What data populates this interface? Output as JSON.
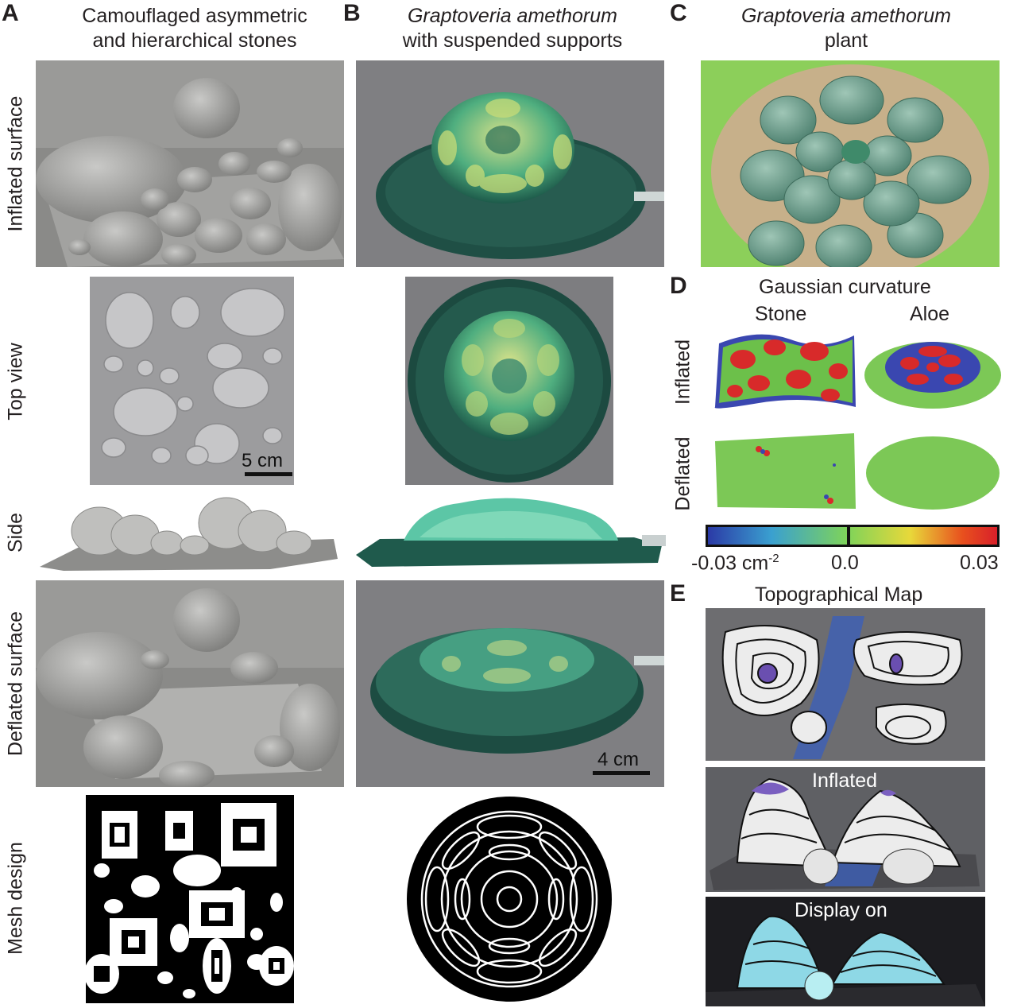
{
  "panels": {
    "A": {
      "letter": "A",
      "title_line1": "Camouflaged asymmetric",
      "title_line2": "and hierarchical stones"
    },
    "B": {
      "letter": "B",
      "title_line1": "Graptoveria amethorum",
      "title_line2": "with suspended supports"
    },
    "C": {
      "letter": "C",
      "title_line1": "Graptoveria amethorum",
      "title_line2": "plant"
    },
    "D": {
      "letter": "D",
      "title": "Gaussian curvature",
      "col1": "Stone",
      "col2": "Aloe",
      "row1": "Inflated",
      "row2": "Deflated",
      "colorbar": {
        "min_label": "-0.03 cm",
        "min_exp": "-2",
        "mid_label": "0.0",
        "max_label": "0.03",
        "colors": [
          "#2b3aa6",
          "#3aa0d0",
          "#7ed35a",
          "#e8d83a",
          "#e8501e",
          "#d8202a"
        ]
      }
    },
    "E": {
      "letter": "E",
      "title": "Topographical Map",
      "label_inflated": "Inflated",
      "label_display": "Display on"
    }
  },
  "row_labels": [
    "Inflated surface",
    "Top view",
    "Side",
    "Deflated surface",
    "Mesh design"
  ],
  "scale_bars": {
    "a_top_view": "5 cm",
    "b_deflated": "4 cm"
  }
}
